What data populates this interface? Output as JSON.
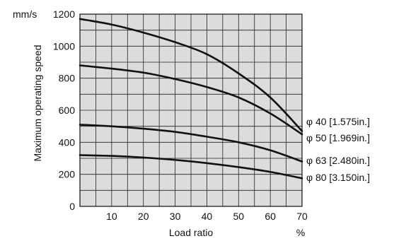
{
  "chart_data": {
    "type": "line",
    "title": "",
    "xlabel": "Load ratio",
    "ylabel": "Maximum operating speed",
    "x_unit": "%",
    "y_unit": "mm/s",
    "xlim": [
      0,
      70
    ],
    "ylim": [
      0,
      1200
    ],
    "x_ticks": [
      "10",
      "20",
      "30",
      "40",
      "50",
      "60",
      "70"
    ],
    "y_ticks": [
      "0",
      "200",
      "400",
      "600",
      "800",
      "1000",
      "1200"
    ],
    "grid": true,
    "background_color": "#dcdcdc",
    "line_color": "#111111",
    "series": [
      {
        "name": "φ 40 [1.575in.]",
        "x": [
          0,
          10,
          20,
          30,
          40,
          50,
          60,
          70
        ],
        "y": [
          1170,
          1135,
          1085,
          1025,
          950,
          830,
          680,
          470
        ]
      },
      {
        "name": "φ 50 [1.969in.]",
        "x": [
          0,
          10,
          20,
          30,
          40,
          50,
          60,
          70
        ],
        "y": [
          880,
          860,
          835,
          795,
          745,
          680,
          580,
          450
        ]
      },
      {
        "name": "φ 63 [2.480in.]",
        "x": [
          0,
          10,
          20,
          30,
          40,
          50,
          60,
          70
        ],
        "y": [
          510,
          500,
          485,
          465,
          435,
          400,
          350,
          280
        ]
      },
      {
        "name": "φ 80 [3.150in.]",
        "x": [
          0,
          10,
          20,
          30,
          40,
          50,
          60,
          70
        ],
        "y": [
          320,
          315,
          305,
          290,
          270,
          245,
          215,
          175
        ]
      }
    ]
  }
}
